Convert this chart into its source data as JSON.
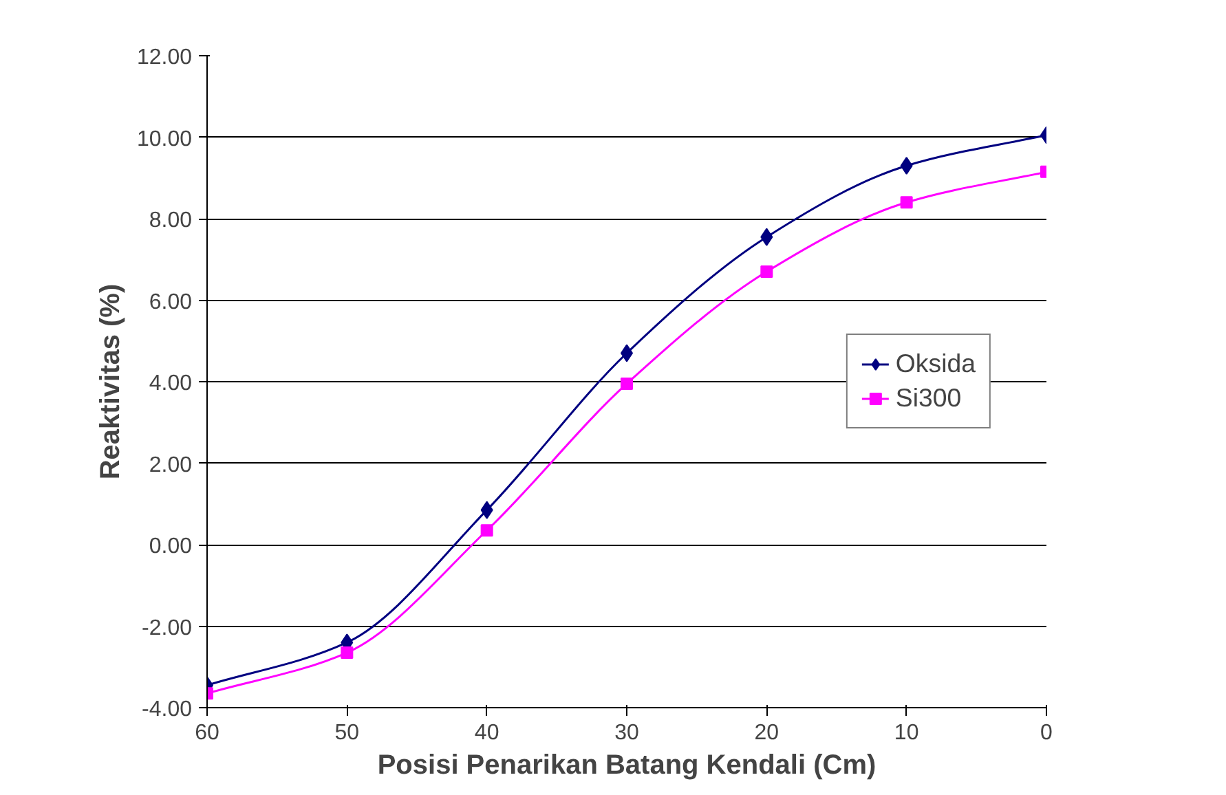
{
  "chart_data": {
    "type": "line",
    "xlabel": "Posisi Penarikan Batang Kendali (Cm)",
    "ylabel": "Reaktivitas (%)",
    "x": [
      60,
      50,
      40,
      30,
      20,
      10,
      0
    ],
    "xlim": [
      60,
      0
    ],
    "xticks": [
      60,
      50,
      40,
      30,
      20,
      10,
      0
    ],
    "ylim": [
      -4,
      12
    ],
    "yticks": [
      {
        "value": -4,
        "label": "-4.00"
      },
      {
        "value": -2,
        "label": "-2.00"
      },
      {
        "value": 0,
        "label": "0.00"
      },
      {
        "value": 2,
        "label": "2.00"
      },
      {
        "value": 4,
        "label": "4.00"
      },
      {
        "value": 6,
        "label": "6.00"
      },
      {
        "value": 8,
        "label": "8.00"
      },
      {
        "value": 10,
        "label": "10.00"
      },
      {
        "value": 12,
        "label": "12.00"
      }
    ],
    "grid": "y",
    "legend": "right",
    "line_style": "solid",
    "series": [
      {
        "name": "Oksida",
        "color": "#000080",
        "marker": "diamond",
        "values": [
          -3.45,
          -2.4,
          0.85,
          4.7,
          7.55,
          9.3,
          10.05
        ]
      },
      {
        "name": "Si300",
        "color": "#ff00ff",
        "marker": "square",
        "values": [
          -3.65,
          -2.65,
          0.35,
          3.95,
          6.7,
          8.4,
          9.15
        ]
      }
    ]
  }
}
